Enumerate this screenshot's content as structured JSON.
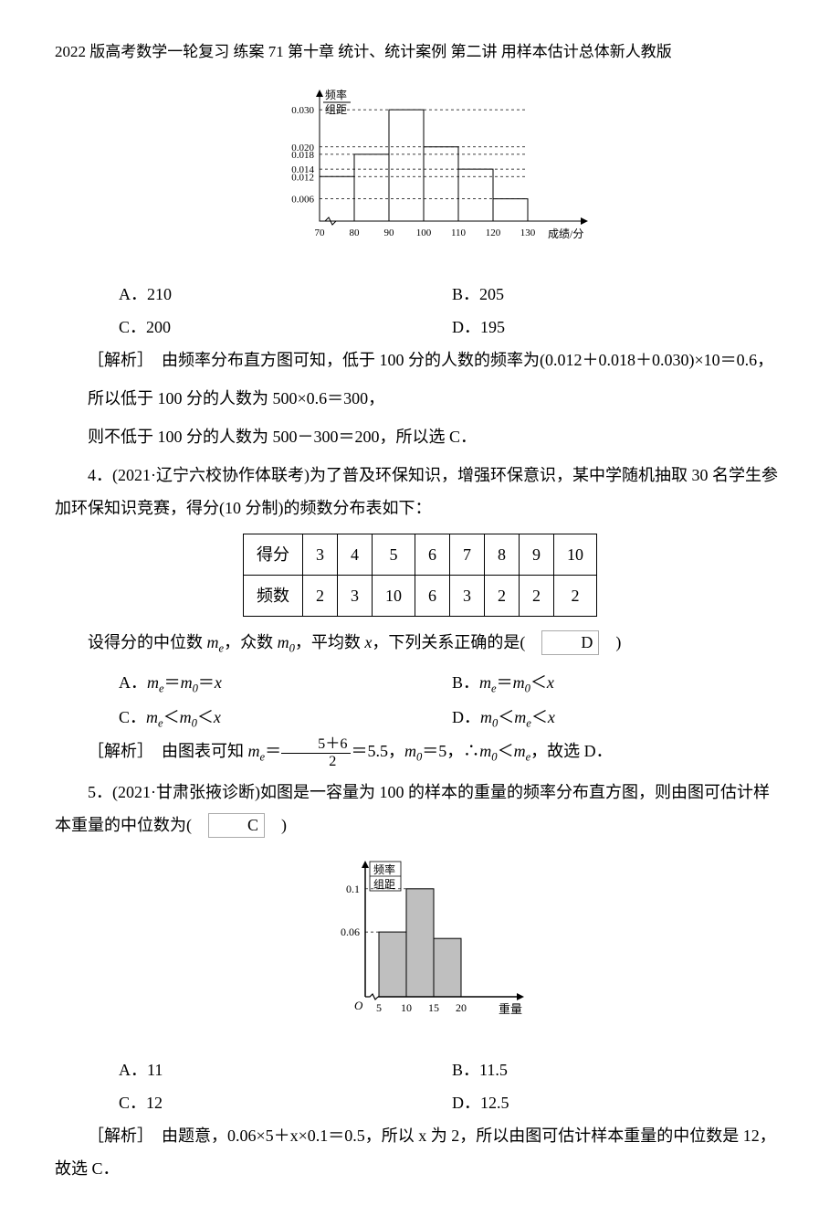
{
  "header": {
    "title": "2022 版高考数学一轮复习 练案 71 第十章 统计、统计案例 第二讲 用样本估计总体新人教版"
  },
  "chart1": {
    "type": "histogram",
    "ylabel_top": "频率",
    "ylabel_bottom": "组距",
    "xlabel": "成绩/分",
    "x_ticks": [
      70,
      80,
      90,
      100,
      110,
      120,
      130
    ],
    "bars": [
      {
        "x0": 70,
        "x1": 80,
        "height": 0.012
      },
      {
        "x0": 80,
        "x1": 90,
        "height": 0.018
      },
      {
        "x0": 90,
        "x1": 100,
        "height": 0.03
      },
      {
        "x0": 100,
        "x1": 110,
        "height": 0.02
      },
      {
        "x0": 110,
        "x1": 120,
        "height": 0.014
      },
      {
        "x0": 120,
        "x1": 130,
        "height": 0.006
      }
    ],
    "y_ticks": [
      0.006,
      0.012,
      0.014,
      0.018,
      0.02,
      0.03
    ],
    "bar_border": "#000000",
    "bar_fill": "none",
    "axis_color": "#000000",
    "dash_color": "#000000"
  },
  "q3": {
    "options": {
      "A": "A．210",
      "B": "B．205",
      "C": "C．200",
      "D": "D．195"
    },
    "analysis_label": "［解析］",
    "analysis_p1": "由频率分布直方图可知，低于 100 分的人数的频率为(0.012＋0.018＋0.030)×10＝0.6，",
    "analysis_p2": "所以低于 100 分的人数为 500×0.6＝300，",
    "analysis_p3": "则不低于 100 分的人数为 500－300＝200，所以选 C．"
  },
  "q4": {
    "stem": "4．(2021·辽宁六校协作体联考)为了普及环保知识，增强环保意识，某中学随机抽取 30 名学生参加环保知识竞赛，得分(10 分制)的频数分布表如下：",
    "table": {
      "header_label": "得分",
      "freq_label": "频数",
      "scores": [
        3,
        4,
        5,
        6,
        7,
        8,
        9,
        10
      ],
      "freqs": [
        2,
        3,
        10,
        6,
        3,
        2,
        2,
        2
      ]
    },
    "after_table": "设得分的中位数 ",
    "after_table2": "，众数 ",
    "after_table3": "，平均数 ",
    "after_table4": "，下列关系正确的是(　",
    "after_table5": "　)",
    "answer": "D",
    "options": {
      "A": "A．",
      "B": "B．",
      "C": "C．",
      "D": "D．"
    },
    "analysis_label": "［解析］",
    "analysis_text_pre": "由图表可知 ",
    "analysis_frac_num": "5＋6",
    "analysis_frac_den": "2",
    "analysis_text_post": "＝5.5，",
    "analysis_text_m0": "＝5，∴",
    "analysis_text_end": "，故选 D．"
  },
  "q5": {
    "stem": "5．(2021·甘肃张掖诊断)如图是一容量为 100 的样本的重量的频率分布直方图，则由图可估计样本重量的中位数为(　",
    "stem_end": "　)",
    "answer": "C",
    "options": {
      "A": "A．11",
      "B": "B．11.5",
      "C": "C．12",
      "D": "D．12.5"
    },
    "analysis_label": "［解析］",
    "analysis_text": "由题意，0.06×5＋x×0.1＝0.5，所以 x 为 2，所以由图可估计样本重量的中位数是 12，故选 C．"
  },
  "chart2": {
    "type": "histogram",
    "ylabel_top": "频率",
    "ylabel_bottom": "组距",
    "xlabel": "重量",
    "origin_label": "O",
    "x_ticks": [
      5,
      10,
      15,
      20
    ],
    "y_ticks": [
      0.06,
      0.1
    ],
    "bars": [
      {
        "x0": 5,
        "x1": 10,
        "height": 0.06,
        "fill": "#bfbfbf"
      },
      {
        "x0": 10,
        "x1": 15,
        "height": 0.1,
        "fill": "#bfbfbf"
      },
      {
        "x0": 15,
        "x1": 20,
        "height": 0.054,
        "fill": "#bfbfbf"
      }
    ],
    "axis_color": "#000000",
    "bar_border": "#000000"
  }
}
